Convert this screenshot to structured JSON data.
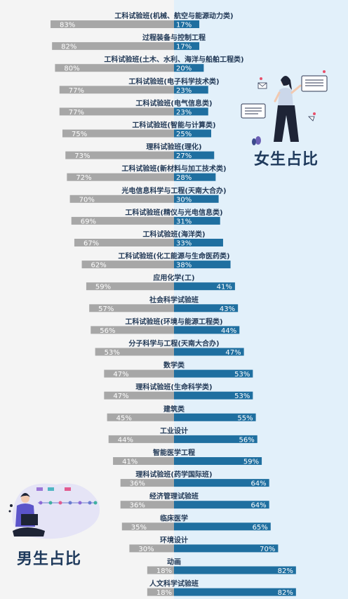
{
  "chart_data": {
    "type": "bar",
    "categories": [
      "工科试验班(机械、航空与能源动力类)",
      "过程装备与控制工程",
      "工科试验班(土木、水利、海洋与船舶工程类)",
      "工科试验班(电子科学技术类)",
      "工科试验班(电气信息类)",
      "工科试验班(智能与计算类)",
      "理科试验班(理化)",
      "工科试验班(新材料与加工技术类)",
      "光电信息科学与工程(天南大合办)",
      "工科试验班(精仪与光电信息类)",
      "工科试验班(海洋类)",
      "工科试验班(化工能源与生命医药类)",
      "应用化学(工)",
      "社会科学试验班",
      "工科试验班(环境与能源工程类)",
      "分子科学与工程(天南大合办)",
      "数学类",
      "理科试验班(生命科学类)",
      "建筑类",
      "工业设计",
      "智能医学工程",
      "理科试验班(药学国际班)",
      "经济管理试验班",
      "临床医学",
      "环境设计",
      "动画",
      "人文科学试验班"
    ],
    "series": [
      {
        "name": "男生占比",
        "values": [
          83,
          82,
          80,
          77,
          77,
          75,
          73,
          72,
          70,
          69,
          67,
          62,
          59,
          57,
          56,
          53,
          47,
          47,
          45,
          44,
          41,
          36,
          36,
          35,
          30,
          18,
          18
        ]
      },
      {
        "name": "女生占比",
        "values": [
          17,
          17,
          20,
          23,
          23,
          25,
          27,
          28,
          30,
          31,
          33,
          38,
          41,
          43,
          44,
          47,
          53,
          53,
          55,
          56,
          59,
          64,
          64,
          65,
          70,
          82,
          82
        ]
      }
    ],
    "unit": "%",
    "colors": {
      "male": "#a7a7a7",
      "female": "#1f6fa0"
    }
  },
  "titles": {
    "female": "女生占比",
    "male": "男生占比"
  }
}
